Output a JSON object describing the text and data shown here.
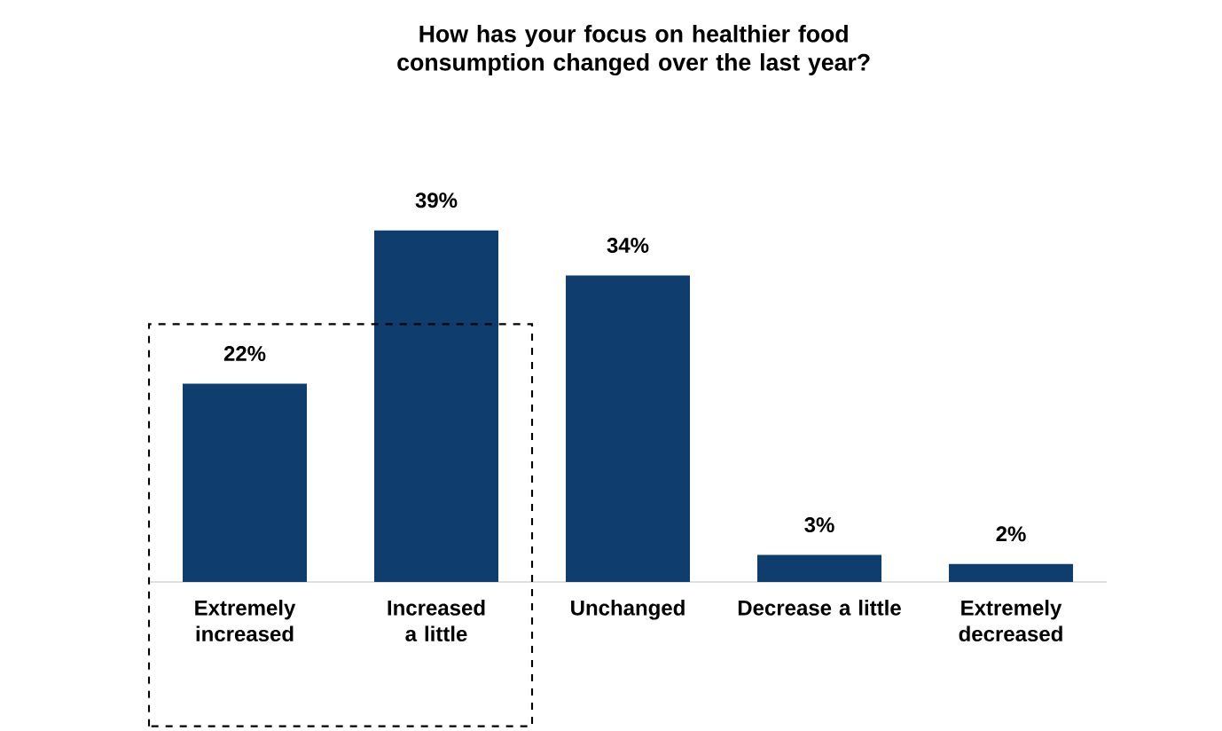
{
  "chart_data": {
    "type": "bar",
    "title": "How has your focus on healthier food consumption changed over the last year?",
    "categories": [
      "Extremely increased",
      "Increased a little",
      "Unchanged",
      "Decrease a little",
      "Extremely decreased"
    ],
    "values": [
      22,
      39,
      34,
      3,
      2
    ],
    "value_labels": [
      "22%",
      "39%",
      "34%",
      "3%",
      "2%"
    ],
    "color": "#0e3d6e"
  }
}
